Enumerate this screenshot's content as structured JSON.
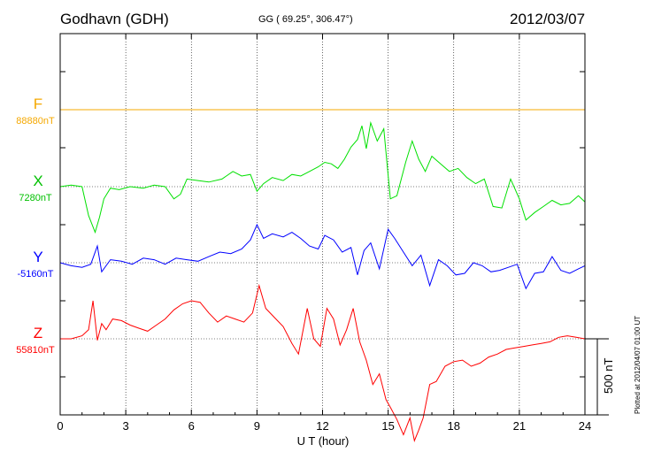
{
  "header": {
    "station": "Godhavn (GDH)",
    "coords": "GG ( 69.25°, 306.47°)",
    "date": "2012/03/07"
  },
  "footer": {
    "plotted": "Plotted at 2012/04/07 01:00 UT"
  },
  "chart_data": {
    "type": "line",
    "xlabel": "U T (hour)",
    "xlim": [
      0,
      24
    ],
    "xticks": [
      "0",
      "3",
      "6",
      "9",
      "12",
      "15",
      "18",
      "21",
      "24"
    ],
    "scale_bar_label": "500 nT",
    "scale_bar_nT": 500,
    "grid": true,
    "series": [
      {
        "name": "F",
        "baseline": "88880nT",
        "color": "#f5a800",
        "x": [
          0,
          24
        ],
        "values": [
          0,
          0
        ]
      },
      {
        "name": "X",
        "baseline": "7280nT",
        "color": "#00e000",
        "x": [
          0,
          0.5,
          1.0,
          1.3,
          1.6,
          1.8,
          2.0,
          2.3,
          2.7,
          3.2,
          3.8,
          4.3,
          4.8,
          5.2,
          5.5,
          5.8,
          6.3,
          6.8,
          7.4,
          7.9,
          8.3,
          8.7,
          9.0,
          9.3,
          9.7,
          10.2,
          10.6,
          11.0,
          11.4,
          11.8,
          12.1,
          12.4,
          12.7,
          13.0,
          13.3,
          13.6,
          13.8,
          14.0,
          14.2,
          14.5,
          14.8,
          15.1,
          15.4,
          15.8,
          16.1,
          16.4,
          16.7,
          17.0,
          17.4,
          17.8,
          18.2,
          18.6,
          19.0,
          19.4,
          19.8,
          20.2,
          20.6,
          21.0,
          21.3,
          21.7,
          22.1,
          22.5,
          22.9,
          23.3,
          23.7,
          24.0
        ],
        "values": [
          0,
          10,
          0,
          -190,
          -300,
          -200,
          -80,
          -10,
          -20,
          0,
          -10,
          10,
          0,
          -80,
          -50,
          50,
          40,
          30,
          50,
          100,
          70,
          80,
          -30,
          20,
          60,
          40,
          80,
          70,
          100,
          130,
          160,
          150,
          120,
          180,
          260,
          310,
          400,
          250,
          420,
          300,
          380,
          -80,
          -60,
          160,
          300,
          180,
          100,
          200,
          150,
          100,
          120,
          60,
          20,
          50,
          -130,
          -140,
          50,
          -80,
          -220,
          -170,
          -130,
          -90,
          -120,
          -110,
          -60,
          -100
        ]
      },
      {
        "name": "Y",
        "baseline": "-5160nT",
        "color": "#0000ff",
        "x": [
          0,
          0.5,
          1.0,
          1.4,
          1.7,
          1.9,
          2.3,
          2.8,
          3.3,
          3.8,
          4.3,
          4.8,
          5.3,
          5.8,
          6.3,
          6.8,
          7.3,
          7.8,
          8.3,
          8.7,
          9.0,
          9.3,
          9.7,
          10.2,
          10.6,
          11.0,
          11.4,
          11.8,
          12.1,
          12.5,
          12.9,
          13.3,
          13.6,
          13.9,
          14.2,
          14.6,
          15.0,
          15.3,
          15.7,
          16.1,
          16.5,
          16.9,
          17.3,
          17.7,
          18.1,
          18.5,
          18.9,
          19.3,
          19.7,
          20.1,
          20.5,
          20.9,
          21.3,
          21.7,
          22.1,
          22.5,
          22.9,
          23.3,
          23.7,
          24.0
        ],
        "values": [
          0,
          -20,
          -30,
          -10,
          110,
          -60,
          20,
          10,
          -10,
          30,
          20,
          -10,
          30,
          20,
          10,
          40,
          70,
          60,
          90,
          150,
          250,
          160,
          190,
          170,
          200,
          160,
          110,
          90,
          180,
          150,
          70,
          100,
          -80,
          80,
          130,
          -40,
          220,
          160,
          70,
          -20,
          50,
          -150,
          20,
          -20,
          -80,
          -70,
          0,
          -20,
          -60,
          -50,
          -30,
          -10,
          -170,
          -70,
          -60,
          40,
          -50,
          -70,
          -40,
          -20
        ]
      },
      {
        "name": "Z",
        "baseline": "55810nT",
        "color": "#ff0000",
        "x": [
          0,
          0.5,
          1.0,
          1.3,
          1.5,
          1.7,
          1.9,
          2.1,
          2.4,
          2.8,
          3.2,
          3.6,
          4.0,
          4.4,
          4.8,
          5.2,
          5.6,
          6.0,
          6.4,
          6.8,
          7.2,
          7.6,
          8.0,
          8.4,
          8.8,
          9.1,
          9.4,
          9.8,
          10.2,
          10.6,
          10.9,
          11.3,
          11.6,
          11.9,
          12.2,
          12.5,
          12.8,
          13.1,
          13.4,
          13.7,
          14.0,
          14.3,
          14.6,
          14.9,
          15.1,
          15.4,
          15.7,
          16.0,
          16.2,
          16.4,
          16.6,
          16.9,
          17.2,
          17.6,
          18.0,
          18.4,
          18.8,
          19.2,
          19.6,
          20.0,
          20.4,
          20.8,
          21.2,
          21.6,
          22.0,
          22.4,
          22.8,
          23.2,
          23.6,
          24.0
        ],
        "values": [
          0,
          0,
          20,
          60,
          250,
          -10,
          100,
          60,
          130,
          120,
          90,
          70,
          50,
          90,
          130,
          190,
          230,
          250,
          240,
          170,
          110,
          150,
          130,
          110,
          170,
          350,
          200,
          140,
          80,
          -30,
          -100,
          200,
          0,
          -50,
          200,
          130,
          -40,
          60,
          200,
          -20,
          -140,
          -300,
          -230,
          -400,
          -450,
          -530,
          -630,
          -520,
          -670,
          -600,
          -520,
          -300,
          -280,
          -180,
          -150,
          -140,
          -180,
          -160,
          -120,
          -100,
          -70,
          -60,
          -50,
          -40,
          -30,
          -20,
          10,
          20,
          10,
          0
        ]
      }
    ]
  }
}
